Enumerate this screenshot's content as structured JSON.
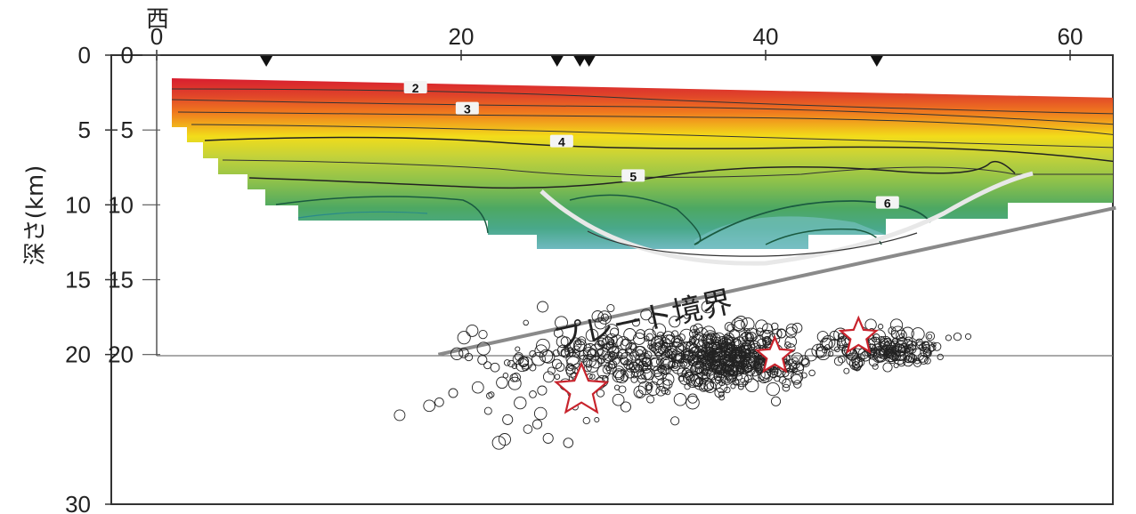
{
  "chart_data": {
    "type": "scatter",
    "title": "",
    "xlabel": "西",
    "ylabel": "深さ(km)",
    "xlim": [
      0,
      63
    ],
    "ylim": [
      0,
      30
    ],
    "y_axis_inverted": true,
    "x_ticks": [
      0,
      20,
      40,
      60
    ],
    "x_tick_labels": [
      "0",
      "20",
      "40",
      "60"
    ],
    "y_ticks": [
      0,
      5,
      10,
      15,
      20,
      30
    ],
    "y_tick_labels": [
      "0",
      "5",
      "10",
      "15",
      "20",
      "30"
    ],
    "y_tick_shadow_labels": [
      "0",
      "5",
      "10",
      "15",
      "20"
    ],
    "grid": false,
    "legend": "none",
    "stations_km": [
      7.2,
      26.3,
      27.8,
      28.4,
      47.3
    ],
    "velocity_contours": [
      {
        "label": "2",
        "x": 17.0,
        "y": 2.2
      },
      {
        "label": "3",
        "x": 20.4,
        "y": 3.6
      },
      {
        "label": "4",
        "x": 26.6,
        "y": 5.8
      },
      {
        "label": "5",
        "x": 31.3,
        "y": 8.1
      },
      {
        "label": "6",
        "x": 48.0,
        "y": 9.9
      }
    ],
    "plate_boundary_label": "プレート境界",
    "plate_boundary_line": [
      [
        18.5,
        20.0
      ],
      [
        63.0,
        10.2
      ]
    ],
    "hypocenter_cluster_centers": [
      {
        "x": 31.5,
        "y": 20.2,
        "sx": 4.5,
        "sy": 1.2,
        "n": 320
      },
      {
        "x": 38.0,
        "y": 20.2,
        "sx": 2.2,
        "sy": 0.9,
        "n": 360
      },
      {
        "x": 47.8,
        "y": 19.6,
        "sx": 2.0,
        "sy": 0.6,
        "n": 170
      },
      {
        "x": 24.0,
        "y": 23.0,
        "sx": 4.0,
        "sy": 2.0,
        "n": 40
      }
    ],
    "mainshocks": [
      {
        "x": 27.9,
        "y": 22.4,
        "size": "large"
      },
      {
        "x": 40.6,
        "y": 20.1,
        "size": "medium"
      },
      {
        "x": 46.1,
        "y": 18.8,
        "size": "medium"
      }
    ],
    "colors": {
      "v2": "#d81e2f",
      "v3": "#f07a1e",
      "v4": "#f2dc1a",
      "v5": "#8fc24a",
      "v6": "#3aa35e",
      "v7": "#6fb9c0",
      "star": "#c8232c",
      "frame": "#333333"
    }
  }
}
